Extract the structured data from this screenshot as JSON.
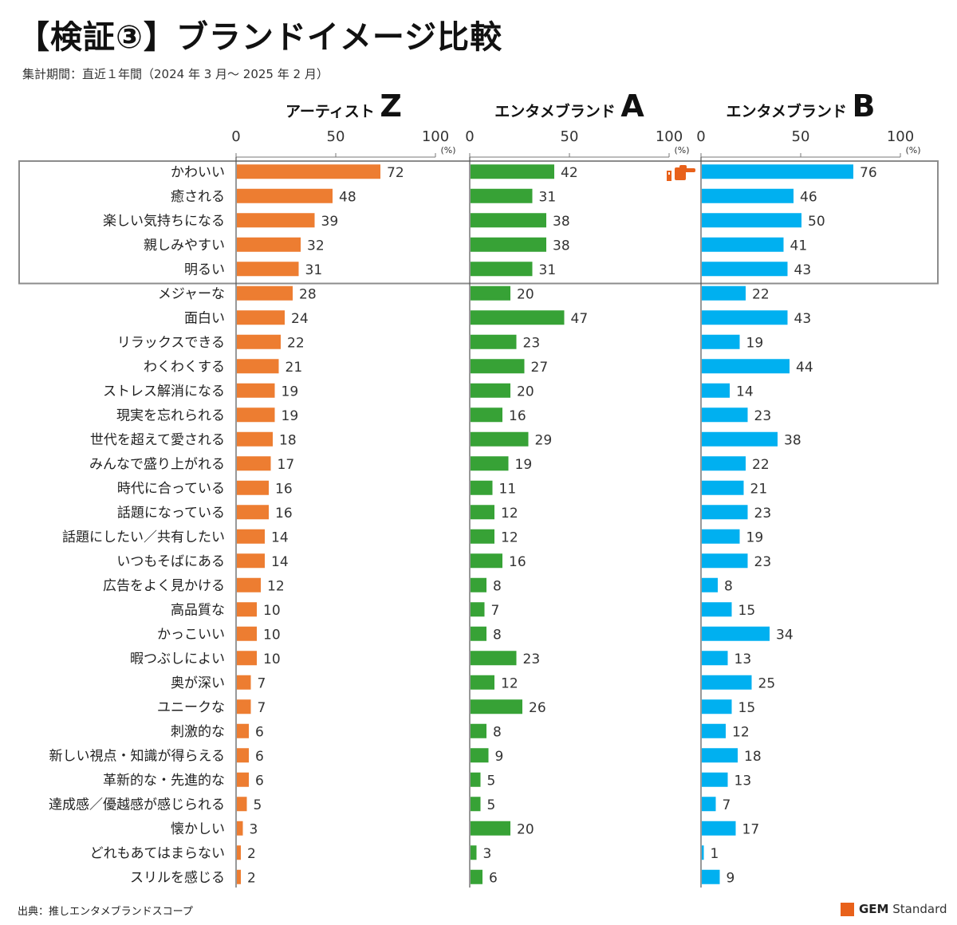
{
  "title": "【検証③】ブランドイメージ比較",
  "subtitle": "集計期間：直近１年間（2024 年 3 月～ 2025 年 2 月）",
  "source": "出典：推しエンタメブランドスコープ",
  "logo": {
    "brand": "GEM",
    "rest": " Standard",
    "color": "#e8611a"
  },
  "chart_data": {
    "type": "bar",
    "orientation": "horizontal",
    "unit": "(%)",
    "xlim": [
      0,
      100
    ],
    "ticks": [
      0,
      50,
      100
    ],
    "categories": [
      "かわいい",
      "癒される",
      "楽しい気持ちになる",
      "親しみやすい",
      "明るい",
      "メジャーな",
      "面白い",
      "リラックスできる",
      "わくわくする",
      "ストレス解消になる",
      "現実を忘れられる",
      "世代を超えて愛される",
      "みんなで盛り上がれる",
      "時代に合っている",
      "話題になっている",
      "話題にしたい／共有したい",
      "いつもそばにある",
      "広告をよく見かける",
      "高品質な",
      "かっこいい",
      "暇つぶしによい",
      "奥が深い",
      "ユニークな",
      "刺激的な",
      "新しい視点・知識が得らえる",
      "革新的な・先進的な",
      "達成感／優越感が感じられる",
      "懐かしい",
      "どれもあてはまらない",
      "スリルを感じる"
    ],
    "highlighted_categories": [
      "かわいい",
      "癒される",
      "楽しい気持ちになる",
      "親しみやすい",
      "明るい"
    ],
    "series": [
      {
        "label_prefix": "アーティスト",
        "label_letter": "Z",
        "color": "#ed7d31",
        "values": [
          72,
          48,
          39,
          32,
          31,
          28,
          24,
          22,
          21,
          19,
          19,
          18,
          17,
          16,
          16,
          14,
          14,
          12,
          10,
          10,
          10,
          7,
          7,
          6,
          6,
          6,
          5,
          3,
          2,
          2
        ]
      },
      {
        "label_prefix": "エンタメブランド",
        "label_letter": "A",
        "color": "#37a236",
        "values": [
          42,
          31,
          38,
          38,
          31,
          20,
          47,
          23,
          27,
          20,
          16,
          29,
          19,
          11,
          12,
          12,
          16,
          8,
          7,
          8,
          23,
          12,
          26,
          8,
          9,
          5,
          5,
          20,
          3,
          6
        ]
      },
      {
        "label_prefix": "エンタメブランド",
        "label_letter": "B",
        "color": "#00b0f0",
        "values": [
          76,
          46,
          50,
          41,
          43,
          22,
          43,
          19,
          44,
          14,
          23,
          38,
          22,
          21,
          23,
          19,
          23,
          8,
          15,
          34,
          13,
          25,
          15,
          12,
          18,
          13,
          7,
          17,
          1,
          9
        ]
      }
    ],
    "annotation": {
      "icon": "pointing-hand-icon",
      "color": "#e8611a",
      "points_to_series": "B"
    }
  }
}
